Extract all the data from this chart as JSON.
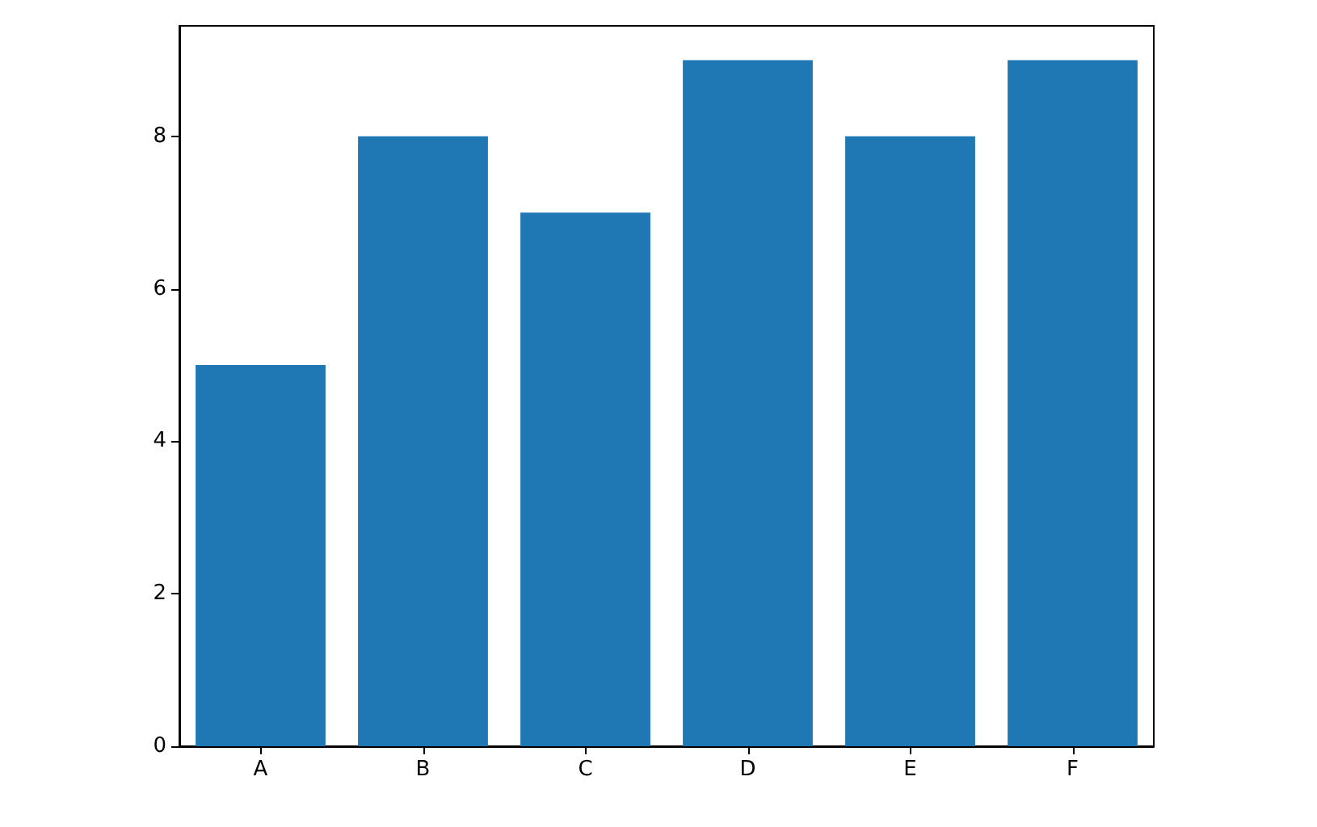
{
  "chart_data": {
    "type": "bar",
    "categories": [
      "A",
      "B",
      "C",
      "D",
      "E",
      "F"
    ],
    "values": [
      5,
      8,
      7,
      9,
      8,
      9
    ],
    "color": "#1f77b4",
    "ylim": [
      0,
      9.45
    ],
    "yticks": [
      0,
      2,
      4,
      6,
      8
    ],
    "grid": false
  }
}
